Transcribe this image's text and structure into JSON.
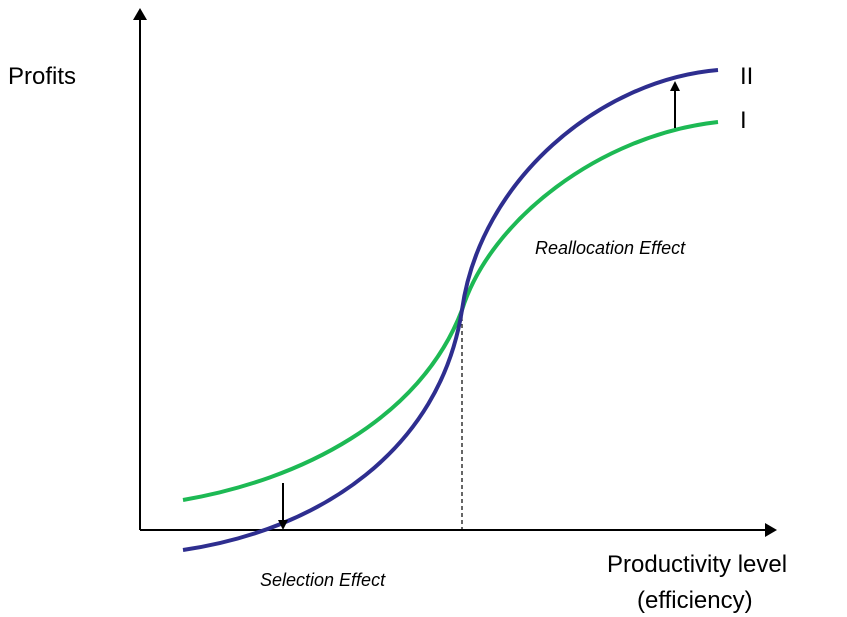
{
  "axis_labels": {
    "y": "Profits",
    "x": [
      "Productivity level",
      "(efficiency)"
    ]
  },
  "curves": [
    {
      "label": "II"
    },
    {
      "label": "I"
    }
  ],
  "annotations": {
    "upper": "Reallocation Effect",
    "lower": "Selection Effect"
  }
}
